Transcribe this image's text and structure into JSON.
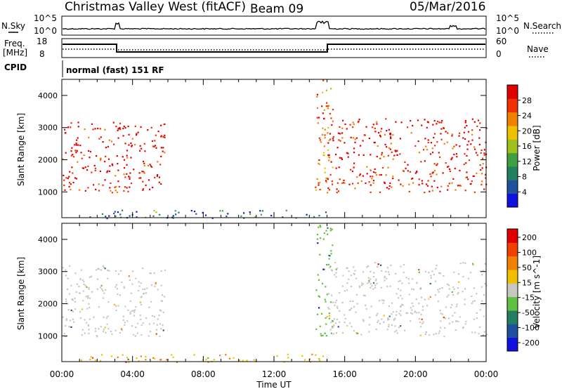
{
  "header": {
    "site": "Christmas Valley West (fitACF)",
    "beam": "Beam 09",
    "date": "05/Mar/2016"
  },
  "strip_labels": {
    "nsky": "N.Sky",
    "nsky_hi": "10^5",
    "nsky_lo": "10^0",
    "nsearch": "N.Search",
    "nsearch_hi": "10^5",
    "nsearch_lo": "10^0",
    "freq": "Freq.",
    "freq_unit": "[MHz]",
    "freq_hi": "18",
    "freq_lo": "8",
    "nave_hi": "60",
    "nave_lo": "0",
    "nave": "Nave",
    "cpid": "CPID",
    "cpid_value": "normal (fast) 151 RF"
  },
  "colors": {
    "power_scale": [
      "#1010e0",
      "#2050a0",
      "#208060",
      "#40a040",
      "#a0c020",
      "#f0c000",
      "#f08000",
      "#f03000",
      "#e00000"
    ],
    "velocity_scale": [
      "#e00000",
      "#f04000",
      "#f08000",
      "#f0c000",
      "#c8c8c0",
      "#60c040",
      "#208060",
      "#2050a0",
      "#1010e0"
    ],
    "ground_scatter": "#c8c8c0"
  },
  "chart_data": [
    {
      "type": "heatmap",
      "title": "",
      "xlabel": "",
      "ylabel": "Slant Range [km]",
      "xlim": [
        "00:00",
        "24:00"
      ],
      "ylim": [
        200,
        4500
      ],
      "yticks": [
        "1000",
        "2000",
        "3000",
        "4000"
      ],
      "colorbar_label": "Power [dB]",
      "colorbar_ticks": [
        "4",
        "8",
        "12",
        "16",
        "20",
        "24",
        "28"
      ],
      "colorbar_range": [
        0,
        32
      ],
      "features": [
        {
          "name": "early echoes",
          "t_start": 0.0,
          "t_end": 5.8,
          "range_km": [
            1000,
            3200
          ],
          "power_db": 30
        },
        {
          "name": "near range band",
          "t_start": 1.0,
          "t_end": 15.2,
          "range_km": [
            200,
            450
          ],
          "power_db": 8
        },
        {
          "name": "spike near 14:30",
          "t_start": 14.3,
          "t_end": 15.3,
          "range_km": [
            1000,
            4500
          ],
          "power_db": 24
        },
        {
          "name": "afternoon echoes",
          "t_start": 15.0,
          "t_end": 24.0,
          "range_km": [
            1000,
            3300
          ],
          "power_db": 30
        }
      ]
    },
    {
      "type": "heatmap",
      "title": "",
      "xlabel": "Time UT",
      "ylabel": "Slant Range [km]",
      "xlim": [
        "00:00",
        "24:00"
      ],
      "ylim": [
        200,
        4500
      ],
      "xticks": [
        "00:00",
        "04:00",
        "08:00",
        "12:00",
        "16:00",
        "20:00",
        "00:00"
      ],
      "yticks": [
        "1000",
        "2000",
        "3000",
        "4000"
      ],
      "colorbar_label": "Velocity [m s^-1]",
      "colorbar_ticks": [
        "200",
        "100",
        "50",
        "15",
        "-15",
        "-50",
        "-100",
        "-200"
      ],
      "colorbar_range": [
        -250,
        250
      ],
      "features": [
        {
          "name": "early ground scatter",
          "t_start": 0.0,
          "t_end": 5.8,
          "range_km": [
            1000,
            3200
          ],
          "velocity": 0
        },
        {
          "name": "near range band",
          "t_start": 1.0,
          "t_end": 15.2,
          "range_km": [
            200,
            450
          ],
          "velocity": -80
        },
        {
          "name": "spike near 14:30",
          "t_start": 14.3,
          "t_end": 15.3,
          "range_km": [
            1000,
            4500
          ],
          "velocity": 60
        },
        {
          "name": "afternoon ground scatter",
          "t_start": 15.0,
          "t_end": 24.0,
          "range_km": [
            1000,
            3300
          ],
          "velocity": 0
        }
      ]
    }
  ]
}
